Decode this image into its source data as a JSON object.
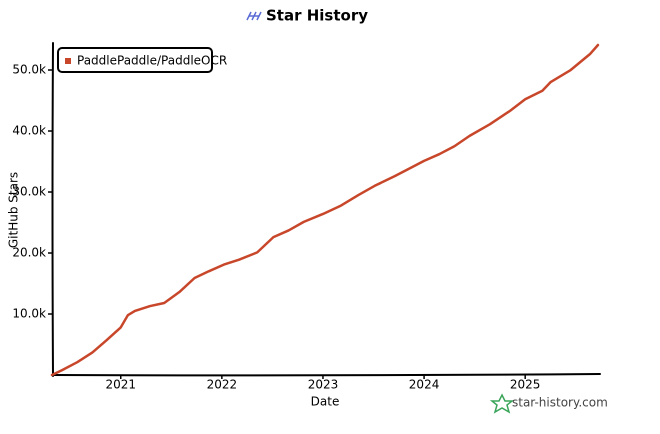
{
  "chart_data": {
    "type": "line",
    "title": "Star History",
    "x_label": "Date",
    "y_label": "GitHub Stars",
    "watermark": "star-history.com",
    "legend": "upper left",
    "x": [
      2020.32,
      2020.42,
      2020.57,
      2020.72,
      2020.86,
      2021.0,
      2021.07,
      2021.14,
      2021.29,
      2021.43,
      2021.58,
      2021.73,
      2021.87,
      2022.02,
      2022.17,
      2022.35,
      2022.51,
      2022.66,
      2022.81,
      2023.0,
      2023.17,
      2023.35,
      2023.51,
      2023.71,
      2023.86,
      2024.0,
      2024.15,
      2024.3,
      2024.45,
      2024.65,
      2024.85,
      2025.0,
      2025.17,
      2025.25,
      2025.45,
      2025.64,
      2025.72
    ],
    "series": [
      {
        "name": "PaddlePaddle/PaddleOCR",
        "color": "#c8472b",
        "values": [
          0,
          800,
          2100,
          3700,
          5700,
          7800,
          9800,
          10500,
          11300,
          11800,
          13600,
          15900,
          17000,
          18100,
          18900,
          20100,
          22600,
          23700,
          25100,
          26400,
          27700,
          29500,
          31000,
          32600,
          33900,
          35100,
          36200,
          37500,
          39200,
          41100,
          43300,
          45200,
          46600,
          48000,
          50000,
          52600,
          54100
        ]
      }
    ],
    "xlim": [
      2020.32,
      2025.74
    ],
    "ylim": [
      0,
      54100
    ],
    "xticks": [
      2021,
      2022,
      2023,
      2024,
      2025
    ],
    "yticks": [
      {
        "value": 10000,
        "label": "10.0k"
      },
      {
        "value": 20000,
        "label": "20.0k"
      },
      {
        "value": 30000,
        "label": "30.0k"
      },
      {
        "value": 40000,
        "label": "40.0k"
      },
      {
        "value": 50000,
        "label": "50.0k"
      }
    ]
  }
}
